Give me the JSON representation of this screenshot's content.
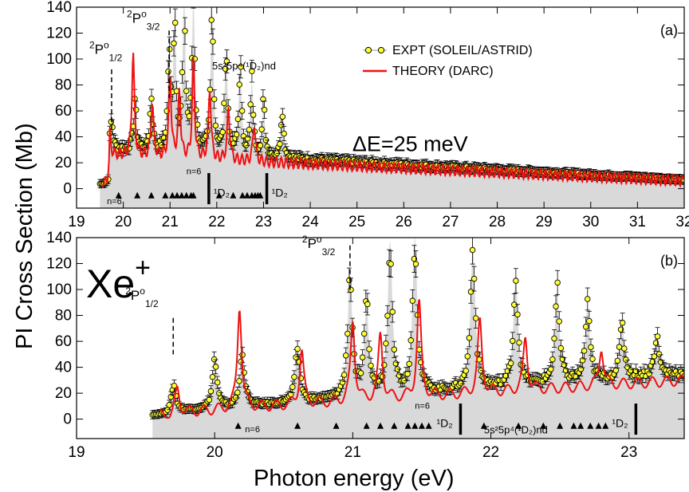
{
  "figure": {
    "xlabel": "Photon energy (eV)",
    "ylabel": "PI Cross Section (Mb)",
    "ion": "Xe",
    "ion_charge": "+",
    "legend": {
      "expt": "EXPT (SOLEIL/ASTRID)",
      "theory": "THEORY (DARC)"
    },
    "colors": {
      "expt_fill": "#ffff33",
      "theory": "#ee1111",
      "band": "#d9d9d9"
    }
  },
  "chart_data": [
    {
      "type": "scatter",
      "panel_label": "(a)",
      "annotation": "ΔE=25 meV",
      "xlim": [
        19,
        32
      ],
      "ylim": [
        -15,
        140
      ],
      "xticks": [
        19,
        20,
        21,
        22,
        23,
        24,
        25,
        26,
        27,
        28,
        29,
        30,
        31,
        32
      ],
      "yticks": [
        0,
        20,
        40,
        60,
        80,
        100,
        120,
        140
      ],
      "thresholds": [
        {
          "x": 19.75,
          "label_main": "P",
          "label_sup_left": "2",
          "label_sup_right": "o",
          "label_sub": "1/2"
        },
        {
          "x": 20.98,
          "label_main": "P",
          "label_sup_left": "2",
          "label_sup_right": "o",
          "label_sub": "3/2"
        }
      ],
      "series_labels": {
        "rydberg": "5s²5p⁴(¹D₂)nd",
        "n6": "n=6",
        "d2": "¹D₂"
      },
      "rydberg_markers": [
        19.9,
        20.3,
        20.6,
        20.9,
        21.05,
        21.15,
        21.25,
        21.35,
        21.45,
        21.5,
        22.05,
        22.35,
        22.55,
        22.65,
        22.75,
        22.82,
        22.88,
        22.93
      ],
      "limit_bars": [
        21.83,
        23.07
      ],
      "peaks": [
        {
          "x": 19.75,
          "y": 22
        },
        {
          "x": 20.25,
          "y": 40
        },
        {
          "x": 20.6,
          "y": 41
        },
        {
          "x": 20.98,
          "y": 70
        },
        {
          "x": 21.1,
          "y": 100
        },
        {
          "x": 21.3,
          "y": 118
        },
        {
          "x": 21.5,
          "y": 120
        },
        {
          "x": 21.9,
          "y": 114
        },
        {
          "x": 22.2,
          "y": 84
        },
        {
          "x": 22.5,
          "y": 70
        },
        {
          "x": 22.75,
          "y": 58
        },
        {
          "x": 23.0,
          "y": 42
        },
        {
          "x": 23.4,
          "y": 38
        }
      ],
      "theory_peaks": [
        {
          "x": 19.7,
          "y": 18
        },
        {
          "x": 20.21,
          "y": 80
        },
        {
          "x": 20.62,
          "y": 42
        },
        {
          "x": 21.0,
          "y": 62
        },
        {
          "x": 21.2,
          "y": 50
        },
        {
          "x": 21.5,
          "y": 73
        },
        {
          "x": 21.85,
          "y": 55
        },
        {
          "x": 22.25,
          "y": 40
        },
        {
          "x": 22.8,
          "y": 30
        }
      ]
    },
    {
      "type": "scatter",
      "panel_label": "(b)",
      "xlim": [
        19,
        23.4
      ],
      "ylim": [
        -15,
        140
      ],
      "xticks": [
        19,
        20,
        21,
        22,
        23
      ],
      "yticks": [
        0,
        20,
        40,
        60,
        80,
        100,
        120,
        140
      ],
      "thresholds": [
        {
          "x": 19.7,
          "label_main": "P",
          "label_sup_left": "2",
          "label_sup_right": "o",
          "label_sub": "1/2"
        },
        {
          "x": 20.98,
          "label_main": "P",
          "label_sup_left": "2",
          "label_sup_right": "o",
          "label_sub": "3/2"
        }
      ],
      "series_labels": {
        "rydberg": "5s²5p⁴(¹D₂)nd",
        "n6": "n=6",
        "d2": "¹D₂"
      },
      "rydberg_markers": [
        20.17,
        20.6,
        20.88,
        21.1,
        21.2,
        21.3,
        21.4,
        21.45,
        21.5,
        21.55,
        21.95,
        22.2,
        22.38,
        22.5,
        22.6,
        22.65,
        22.72,
        22.78,
        22.83
      ],
      "limit_bars": [
        21.78,
        23.05
      ],
      "peaks": [
        {
          "x": 19.7,
          "y": 22
        },
        {
          "x": 20.0,
          "y": 38
        },
        {
          "x": 20.2,
          "y": 42
        },
        {
          "x": 20.6,
          "y": 42
        },
        {
          "x": 20.98,
          "y": 95
        },
        {
          "x": 21.1,
          "y": 68
        },
        {
          "x": 21.27,
          "y": 118
        },
        {
          "x": 21.45,
          "y": 120
        },
        {
          "x": 21.87,
          "y": 113
        },
        {
          "x": 22.18,
          "y": 84
        },
        {
          "x": 22.48,
          "y": 70
        },
        {
          "x": 22.7,
          "y": 56
        },
        {
          "x": 22.95,
          "y": 40
        },
        {
          "x": 23.2,
          "y": 30
        }
      ],
      "theory_peaks": [
        {
          "x": 19.73,
          "y": 18
        },
        {
          "x": 20.18,
          "y": 80
        },
        {
          "x": 20.63,
          "y": 42
        },
        {
          "x": 21.0,
          "y": 62
        },
        {
          "x": 21.2,
          "y": 50
        },
        {
          "x": 21.48,
          "y": 73
        },
        {
          "x": 21.92,
          "y": 55
        },
        {
          "x": 22.25,
          "y": 40
        },
        {
          "x": 22.8,
          "y": 30
        }
      ]
    }
  ]
}
